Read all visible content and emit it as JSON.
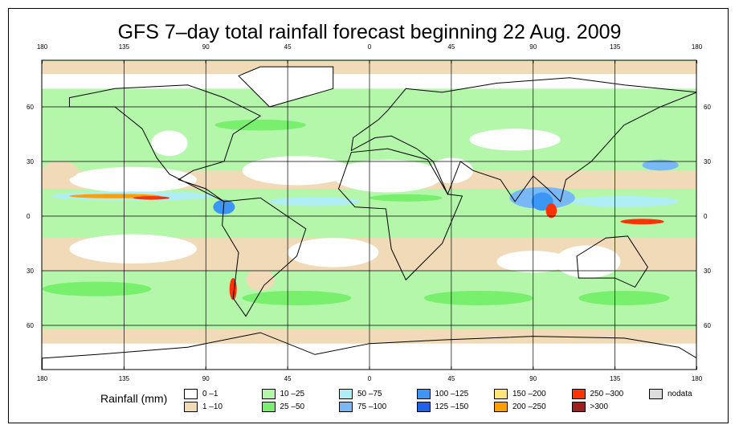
{
  "title": "GFS 7–day total rainfall forecast beginning 22 Aug. 2009",
  "axes": {
    "lon_ticks": [
      "180",
      "135",
      "90",
      "45",
      "0",
      "45",
      "90",
      "135",
      "180"
    ],
    "lat_ticks": [
      "60",
      "30",
      "0",
      "30",
      "60"
    ]
  },
  "legend": {
    "title": "Rainfall (mm)",
    "items": [
      {
        "label": "0 –1",
        "color": "#ffffff"
      },
      {
        "label": "1 –10",
        "color": "#f0dab7"
      },
      {
        "label": "10 –25",
        "color": "#b4f7aa"
      },
      {
        "label": "25 –50",
        "color": "#78f06e"
      },
      {
        "label": "50 –75",
        "color": "#b0eef6"
      },
      {
        "label": "75 –100",
        "color": "#78b8f6"
      },
      {
        "label": "100 –125",
        "color": "#3c96f5"
      },
      {
        "label": "125 –150",
        "color": "#1e64e6"
      },
      {
        "label": "150 –200",
        "color": "#ffe678"
      },
      {
        "label": "200 –250",
        "color": "#ffa000"
      },
      {
        "label": "250 –300",
        "color": "#ff3200"
      },
      {
        "label": ">300",
        "color": "#a01e1e"
      },
      {
        "label": "nodata",
        "color": "#dcdcdc"
      }
    ]
  }
}
